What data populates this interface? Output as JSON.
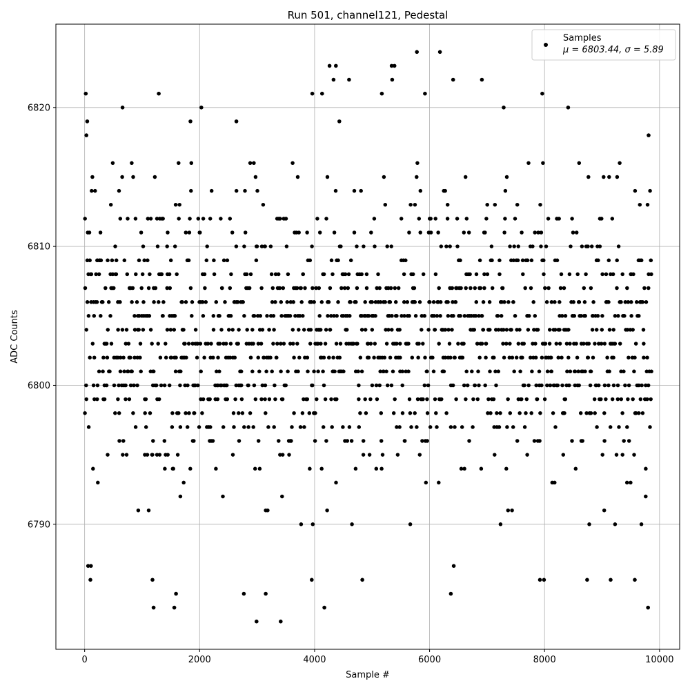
{
  "chart_data": {
    "type": "scatter",
    "title": "Run 501, channel121, Pedestal",
    "xlabel": "Sample #",
    "ylabel": "ADC Counts",
    "xlim": [
      -500,
      10350
    ],
    "ylim": [
      6781,
      6826
    ],
    "xticks": [
      0,
      2000,
      4000,
      6000,
      8000,
      10000
    ],
    "yticks": [
      6790,
      6800,
      6810,
      6820
    ],
    "grid": true,
    "legend": {
      "placement": "top-right",
      "series_name": "Samples",
      "stats_text": "μ = 6803.44, σ = 5.89"
    },
    "series": [
      {
        "name": "Samples",
        "color": "#000000",
        "marker": "circle",
        "n_points": 9850,
        "mean": 6803.44,
        "std": 5.89,
        "x_range": [
          0,
          9849
        ],
        "points": [
          [
            20,
            6821
          ],
          [
            30,
            6818
          ],
          [
            45,
            6819
          ],
          [
            60,
            6787
          ],
          [
            100,
            6786
          ],
          [
            110,
            6787
          ],
          [
            660,
            6820
          ],
          [
            1180,
            6786
          ],
          [
            1200,
            6784
          ],
          [
            1290,
            6821
          ],
          [
            1560,
            6784
          ],
          [
            1590,
            6785
          ],
          [
            1840,
            6819
          ],
          [
            2030,
            6820
          ],
          [
            2640,
            6819
          ],
          [
            2770,
            6785
          ],
          [
            2990,
            6783
          ],
          [
            3150,
            6785
          ],
          [
            3410,
            6783
          ],
          [
            3950,
            6786
          ],
          [
            3960,
            6821
          ],
          [
            4130,
            6821
          ],
          [
            4170,
            6784
          ],
          [
            4260,
            6823
          ],
          [
            4330,
            6822
          ],
          [
            4370,
            6823
          ],
          [
            4430,
            6819
          ],
          [
            4600,
            6822
          ],
          [
            4830,
            6786
          ],
          [
            5170,
            6821
          ],
          [
            5340,
            6823
          ],
          [
            5350,
            6822
          ],
          [
            5390,
            6823
          ],
          [
            5780,
            6824
          ],
          [
            5920,
            6821
          ],
          [
            6180,
            6824
          ],
          [
            6370,
            6785
          ],
          [
            6410,
            6822
          ],
          [
            6420,
            6787
          ],
          [
            6910,
            6822
          ],
          [
            7290,
            6820
          ],
          [
            7920,
            6786
          ],
          [
            7960,
            6821
          ],
          [
            7990,
            6786
          ],
          [
            8410,
            6820
          ],
          [
            8740,
            6786
          ],
          [
            9150,
            6786
          ],
          [
            9570,
            6786
          ],
          [
            9800,
            6784
          ],
          [
            9810,
            6818
          ],
          [
            9850,
            6809
          ]
        ]
      }
    ]
  },
  "colors": {
    "marker": "#000000",
    "grid": "#b0b0b0",
    "axes": "#000000",
    "background": "#ffffff",
    "legend_border": "#cccccc"
  }
}
